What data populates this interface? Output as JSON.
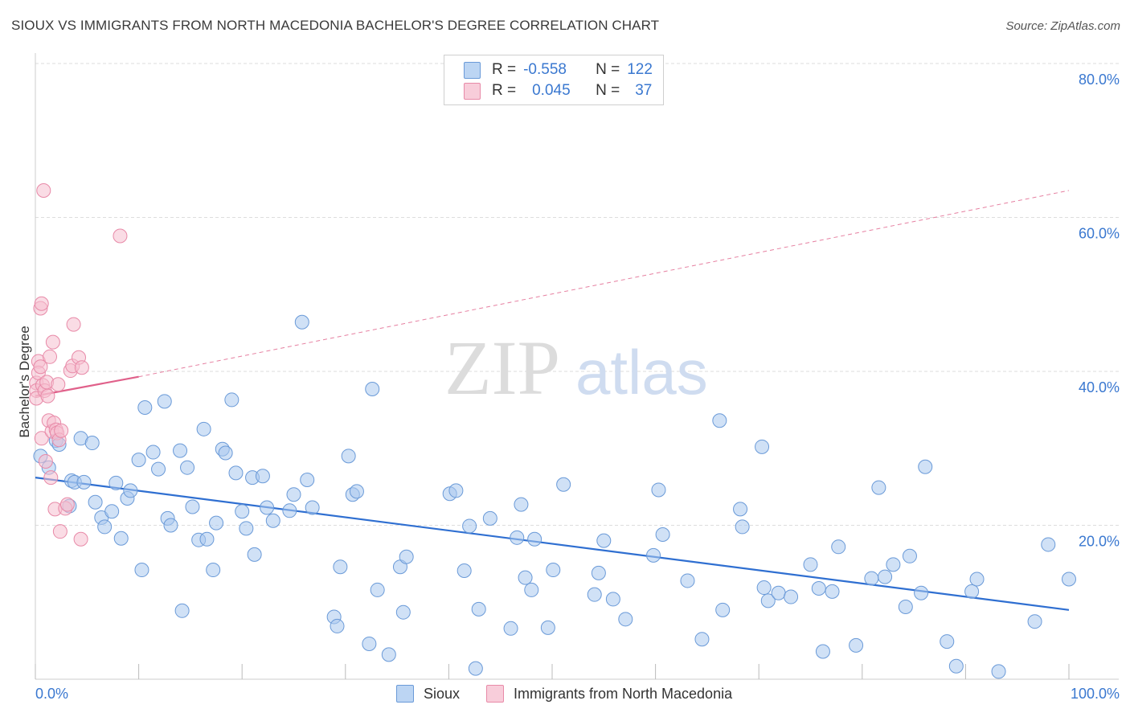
{
  "title": "SIOUX VS IMMIGRANTS FROM NORTH MACEDONIA BACHELOR'S DEGREE CORRELATION CHART",
  "source": "Source: ZipAtlas.com",
  "watermark": {
    "zip": "ZIP",
    "atlas": "atlas"
  },
  "legend": {
    "sioux": {
      "r_label": "R =",
      "r_value": "-0.558",
      "n_label": "N =",
      "n_value": "122"
    },
    "macedonia": {
      "r_label": "R =",
      "r_value": "0.045",
      "n_label": "N =",
      "n_value": "37"
    }
  },
  "bottom_legend": {
    "sioux": "Sioux",
    "macedonia": "Immigrants from North Macedonia"
  },
  "colors": {
    "sioux_fill": "#a9c8ef",
    "sioux_stroke": "#6a9ad8",
    "sioux_line": "#2f6fd1",
    "mac_fill": "#f6bfcf",
    "mac_stroke": "#e88aa8",
    "mac_line": "#e0608a",
    "grid": "#dddddd",
    "tick_label": "#3a78d0"
  },
  "chart_data": {
    "type": "scatter",
    "title": "SIOUX VS IMMIGRANTS FROM NORTH MACEDONIA BACHELOR'S DEGREE CORRELATION CHART",
    "xlabel": "",
    "ylabel": "Bachelor's Degree",
    "xlim": [
      0,
      100
    ],
    "ylim": [
      0,
      82
    ],
    "x_tick_labels": [
      "0.0%",
      "100.0%"
    ],
    "y_ticks": [
      20,
      40,
      60,
      80
    ],
    "y_tick_labels": [
      "20.0%",
      "40.0%",
      "60.0%",
      "80.0%"
    ],
    "series": [
      {
        "name": "Sioux",
        "r": -0.558,
        "n": 122,
        "trend": {
          "x": [
            0,
            100
          ],
          "y": [
            26.2,
            9.0
          ],
          "style": "solid"
        },
        "points": [
          [
            0.5,
            29.0
          ],
          [
            1.3,
            27.5
          ],
          [
            2.0,
            31.0
          ],
          [
            2.3,
            30.5
          ],
          [
            3.3,
            22.5
          ],
          [
            3.5,
            25.8
          ],
          [
            3.8,
            25.6
          ],
          [
            4.4,
            31.3
          ],
          [
            4.7,
            25.6
          ],
          [
            5.5,
            30.7
          ],
          [
            5.8,
            23.0
          ],
          [
            6.4,
            21.0
          ],
          [
            6.7,
            19.8
          ],
          [
            7.4,
            21.8
          ],
          [
            7.8,
            25.5
          ],
          [
            8.3,
            18.3
          ],
          [
            8.9,
            23.5
          ],
          [
            9.2,
            24.5
          ],
          [
            10.0,
            28.5
          ],
          [
            10.3,
            14.2
          ],
          [
            10.6,
            35.3
          ],
          [
            11.4,
            29.5
          ],
          [
            11.9,
            27.3
          ],
          [
            12.5,
            36.1
          ],
          [
            12.8,
            20.9
          ],
          [
            13.1,
            20.0
          ],
          [
            14.0,
            29.7
          ],
          [
            14.2,
            8.9
          ],
          [
            14.7,
            27.5
          ],
          [
            15.2,
            22.4
          ],
          [
            15.8,
            18.1
          ],
          [
            16.3,
            32.5
          ],
          [
            16.6,
            18.2
          ],
          [
            17.2,
            14.2
          ],
          [
            17.5,
            20.3
          ],
          [
            18.1,
            29.9
          ],
          [
            18.4,
            29.4
          ],
          [
            19.0,
            36.3
          ],
          [
            19.4,
            26.8
          ],
          [
            20.0,
            21.8
          ],
          [
            20.4,
            19.6
          ],
          [
            21.0,
            26.2
          ],
          [
            21.2,
            16.2
          ],
          [
            22.0,
            26.4
          ],
          [
            22.4,
            22.3
          ],
          [
            23.0,
            20.6
          ],
          [
            24.6,
            21.9
          ],
          [
            25.0,
            24.0
          ],
          [
            25.8,
            46.4
          ],
          [
            26.3,
            25.9
          ],
          [
            26.8,
            22.3
          ],
          [
            28.9,
            8.1
          ],
          [
            29.2,
            6.9
          ],
          [
            29.5,
            14.6
          ],
          [
            30.3,
            29.0
          ],
          [
            30.7,
            24.0
          ],
          [
            31.1,
            24.4
          ],
          [
            32.3,
            4.6
          ],
          [
            32.6,
            37.7
          ],
          [
            33.1,
            11.6
          ],
          [
            34.2,
            3.2
          ],
          [
            35.3,
            14.6
          ],
          [
            35.6,
            8.7
          ],
          [
            35.9,
            15.9
          ],
          [
            40.1,
            24.1
          ],
          [
            40.7,
            24.5
          ],
          [
            41.5,
            14.1
          ],
          [
            42.0,
            19.9
          ],
          [
            42.6,
            1.4
          ],
          [
            42.9,
            9.1
          ],
          [
            44.0,
            20.9
          ],
          [
            46.0,
            6.6
          ],
          [
            46.6,
            18.4
          ],
          [
            47.0,
            22.7
          ],
          [
            47.4,
            13.2
          ],
          [
            48.0,
            11.6
          ],
          [
            48.3,
            18.2
          ],
          [
            49.6,
            6.7
          ],
          [
            50.1,
            14.2
          ],
          [
            51.1,
            25.3
          ],
          [
            54.1,
            11.0
          ],
          [
            54.5,
            13.8
          ],
          [
            55.0,
            18.0
          ],
          [
            55.9,
            10.4
          ],
          [
            57.1,
            7.8
          ],
          [
            59.8,
            16.1
          ],
          [
            60.3,
            24.6
          ],
          [
            60.7,
            18.8
          ],
          [
            63.1,
            12.8
          ],
          [
            64.5,
            5.2
          ],
          [
            66.2,
            33.6
          ],
          [
            66.5,
            9.0
          ],
          [
            68.2,
            22.1
          ],
          [
            68.4,
            19.8
          ],
          [
            70.3,
            30.2
          ],
          [
            70.5,
            11.9
          ],
          [
            70.9,
            10.2
          ],
          [
            71.9,
            11.2
          ],
          [
            73.1,
            10.7
          ],
          [
            75.0,
            14.9
          ],
          [
            75.8,
            11.8
          ],
          [
            76.2,
            3.6
          ],
          [
            77.1,
            11.4
          ],
          [
            77.7,
            17.2
          ],
          [
            79.4,
            4.4
          ],
          [
            80.9,
            13.1
          ],
          [
            81.6,
            24.9
          ],
          [
            82.2,
            13.3
          ],
          [
            83.0,
            14.9
          ],
          [
            84.2,
            9.4
          ],
          [
            84.6,
            16.0
          ],
          [
            85.7,
            11.2
          ],
          [
            86.1,
            27.6
          ],
          [
            88.2,
            4.9
          ],
          [
            89.1,
            1.7
          ],
          [
            90.6,
            11.4
          ],
          [
            91.1,
            13.0
          ],
          [
            93.2,
            1.0
          ],
          [
            96.7,
            7.5
          ],
          [
            98.0,
            17.5
          ],
          [
            100.0,
            13.0
          ]
        ]
      },
      {
        "name": "Immigrants from North Macedonia",
        "r": 0.045,
        "n": 37,
        "trend": {
          "x": [
            0,
            10
          ],
          "y": [
            36.8,
            39.3
          ],
          "style": "solid"
        },
        "trend_extended": {
          "x": [
            10,
            100
          ],
          "y": [
            39.3,
            63.5
          ],
          "style": "dashed"
        },
        "points": [
          [
            0.1,
            38.5
          ],
          [
            0.1,
            37.5
          ],
          [
            0.1,
            36.5
          ],
          [
            0.3,
            41.3
          ],
          [
            0.3,
            39.8
          ],
          [
            0.5,
            40.6
          ],
          [
            0.5,
            48.2
          ],
          [
            0.6,
            48.8
          ],
          [
            0.6,
            31.3
          ],
          [
            0.7,
            38.2
          ],
          [
            0.8,
            63.5
          ],
          [
            0.9,
            37.5
          ],
          [
            1.0,
            28.3
          ],
          [
            1.1,
            38.6
          ],
          [
            1.2,
            36.8
          ],
          [
            1.3,
            33.6
          ],
          [
            1.4,
            41.9
          ],
          [
            1.5,
            26.2
          ],
          [
            1.6,
            32.2
          ],
          [
            1.7,
            43.8
          ],
          [
            1.8,
            33.3
          ],
          [
            1.9,
            22.1
          ],
          [
            2.0,
            32.4
          ],
          [
            2.1,
            32.0
          ],
          [
            2.2,
            38.3
          ],
          [
            2.3,
            31.1
          ],
          [
            2.4,
            19.2
          ],
          [
            2.5,
            32.3
          ],
          [
            2.9,
            22.2
          ],
          [
            3.1,
            22.7
          ],
          [
            3.4,
            40.1
          ],
          [
            3.6,
            40.7
          ],
          [
            3.7,
            46.1
          ],
          [
            4.2,
            41.8
          ],
          [
            4.4,
            18.2
          ],
          [
            4.5,
            40.5
          ],
          [
            8.2,
            57.6
          ]
        ]
      }
    ]
  }
}
